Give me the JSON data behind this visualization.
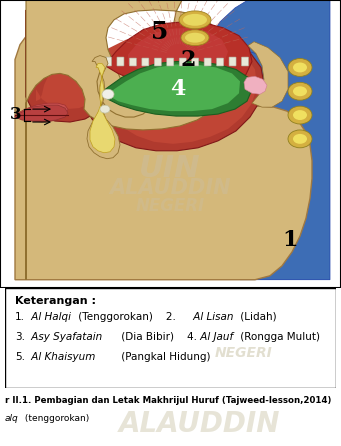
{
  "legend_title": "Keterangan :",
  "legend_line1_num1": "1.",
  "legend_line1_it1": " Al Halqi",
  "legend_line1_norm1": " (Tenggorokan)    2.",
  "legend_line1_it2": " Al Lisan",
  "legend_line1_norm2": " (Lidah)",
  "legend_line2_num3": "3.",
  "legend_line2_it3": " Asy Syafatain",
  "legend_line2_norm3": " (Dia Bibir)    4.",
  "legend_line2_it4": " Al Jauf",
  "legend_line2_norm4": " (Rongga Mulut)",
  "legend_line3_num5": "5.",
  "legend_line3_it5": " Al Khaisyum",
  "legend_line3_norm5": " (Pangkal Hidung)",
  "caption_bold": "r II.1. Pembagian dan Letak Makhrijul Huruf (Tajweed-lesson,2014)",
  "caption_it": "alq",
  "caption_norm": " (tenggorokan)",
  "watermark_uin": "UIN",
  "watermark_negeri": "NEGERI",
  "watermark_alauddin": "ALAUDDIN",
  "skin_color": "#D4B87A",
  "nasal_color": "#B03A2E",
  "nasal_inner_color": "#C0504A",
  "tongue_color": "#C0392B",
  "tongue_inner_color": "#D05050",
  "green_dark": "#2E7D32",
  "green_light": "#4CAF50",
  "blue_throat": "#3D6DB5",
  "yellow_bone": "#D4B040",
  "bg_color": "#ffffff",
  "fig_width": 3.41,
  "fig_height": 4.46,
  "dpi": 100
}
